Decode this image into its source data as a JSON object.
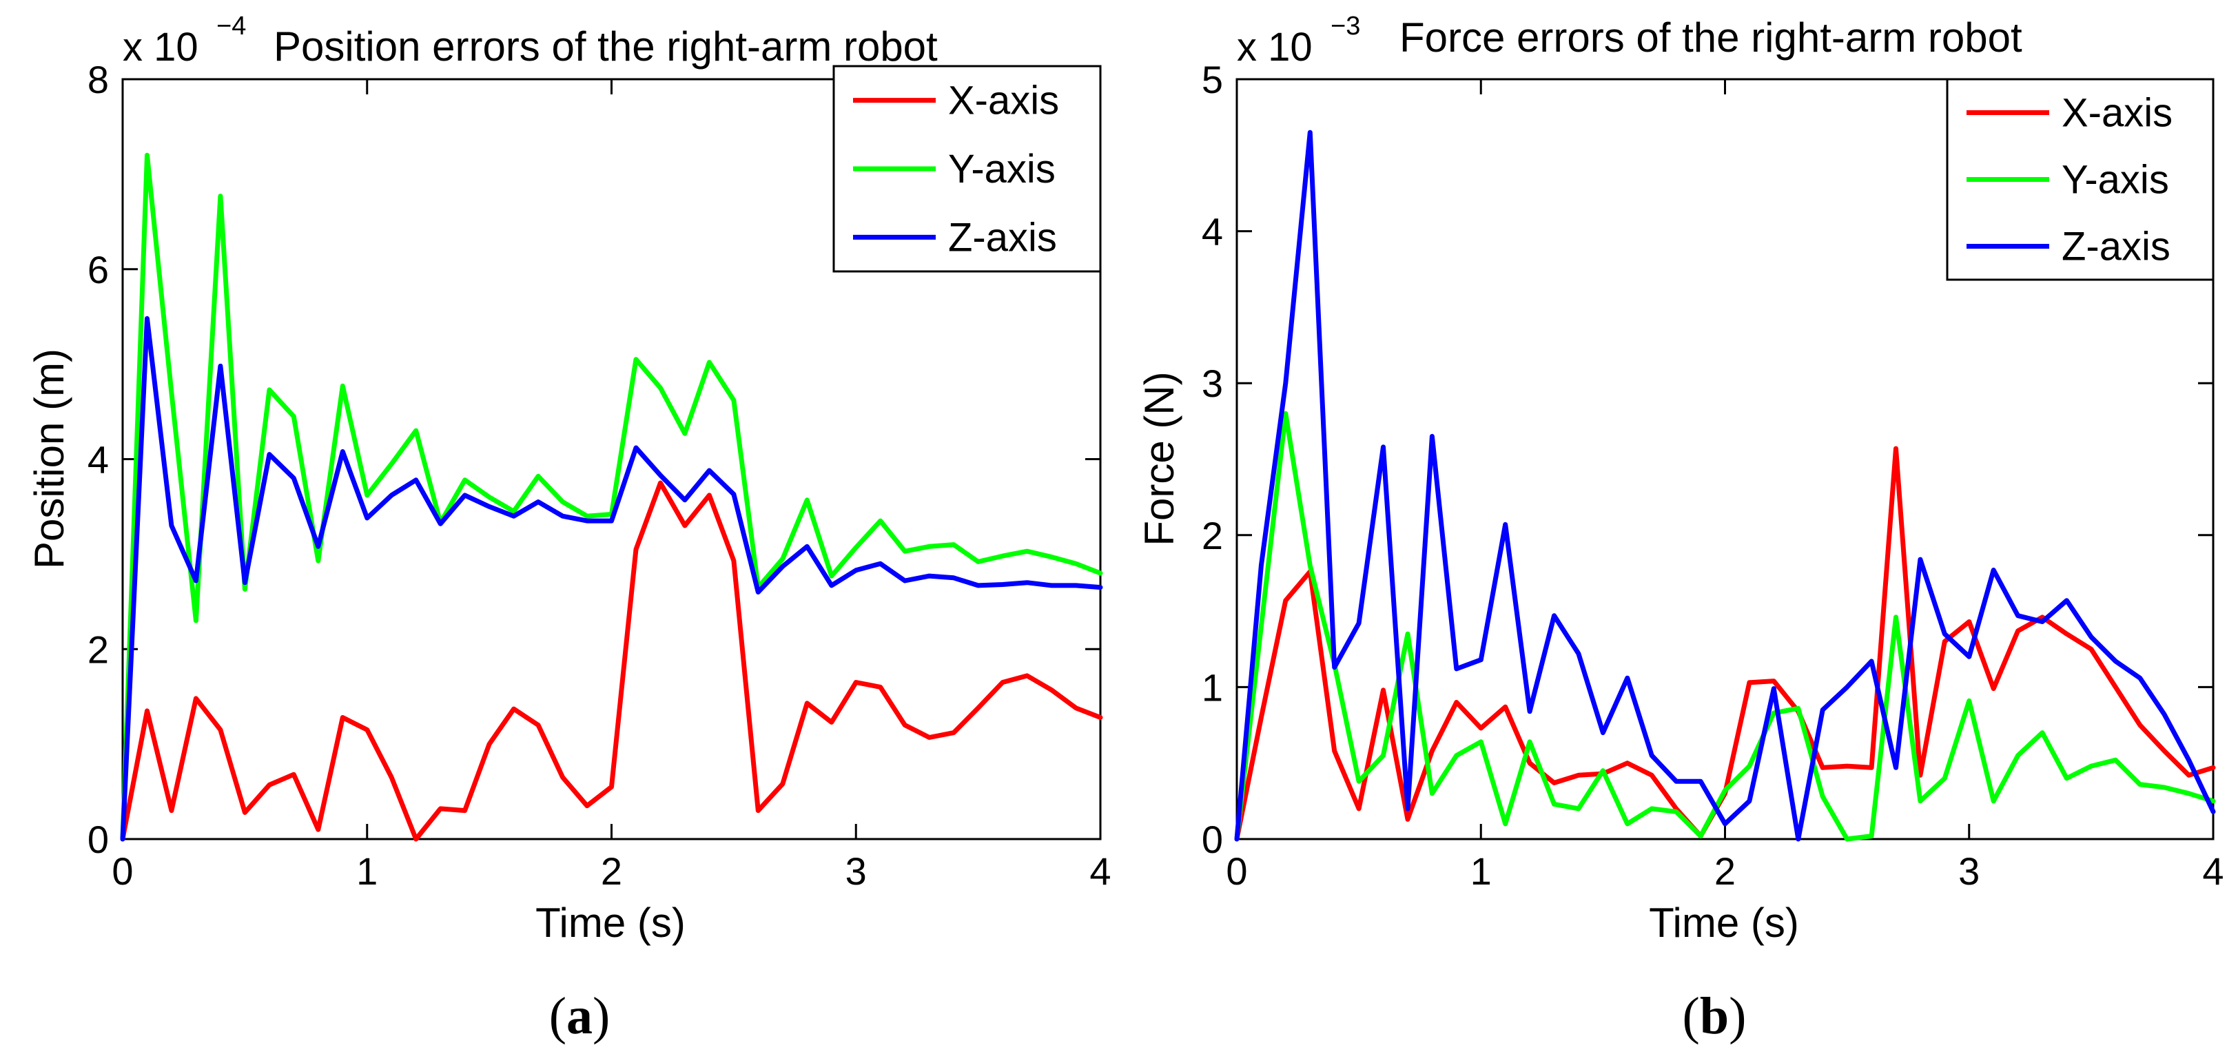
{
  "chart_data": [
    {
      "type": "line",
      "title": "Position errors of the right-arm robot",
      "multiplier": {
        "base": "x 10",
        "exponent": "−4"
      },
      "xlabel": "Time (s)",
      "ylabel": "Position (m)",
      "xlim": [
        0,
        4
      ],
      "ylim": [
        0,
        8
      ],
      "xticks": [
        "0",
        "1",
        "2",
        "3",
        "4"
      ],
      "yticks": [
        "0",
        "2",
        "4",
        "6",
        "8"
      ],
      "caption": {
        "open": "(",
        "letter": "a",
        "close": ")"
      },
      "legend_position": "top-right",
      "grid": false,
      "x": [
        0,
        0.1,
        0.2,
        0.3,
        0.4,
        0.5,
        0.6,
        0.7,
        0.8,
        0.9,
        1.0,
        1.1,
        1.2,
        1.3,
        1.4,
        1.5,
        1.6,
        1.7,
        1.8,
        1.9,
        2.0,
        2.1,
        2.2,
        2.3,
        2.4,
        2.5,
        2.6,
        2.7,
        2.8,
        2.9,
        3.0,
        3.1,
        3.2,
        3.3,
        3.4,
        3.5,
        3.6,
        3.7,
        3.8,
        3.9,
        4.0
      ],
      "series": [
        {
          "name": "X-axis",
          "color": "#ff0000",
          "values": [
            0.0,
            1.35,
            0.3,
            1.48,
            1.15,
            0.28,
            0.57,
            0.68,
            0.1,
            1.28,
            1.15,
            0.65,
            0.0,
            0.32,
            0.3,
            1.0,
            1.37,
            1.2,
            0.65,
            0.35,
            0.55,
            3.05,
            3.75,
            3.3,
            3.62,
            2.93,
            0.3,
            0.58,
            1.43,
            1.23,
            1.65,
            1.6,
            1.2,
            1.07,
            1.12,
            1.38,
            1.65,
            1.72,
            1.57,
            1.38,
            1.28
          ]
        },
        {
          "name": "Y-axis",
          "color": "#00ff00",
          "values": [
            0.0,
            7.2,
            4.7,
            2.3,
            6.77,
            2.63,
            4.73,
            4.45,
            2.93,
            4.77,
            3.62,
            3.95,
            4.3,
            3.33,
            3.78,
            3.6,
            3.45,
            3.82,
            3.55,
            3.4,
            3.42,
            5.05,
            4.75,
            4.27,
            5.02,
            4.62,
            2.65,
            2.95,
            3.57,
            2.77,
            3.07,
            3.35,
            3.03,
            3.08,
            3.1,
            2.92,
            2.98,
            3.03,
            2.97,
            2.9,
            2.8
          ]
        },
        {
          "name": "Z-axis",
          "color": "#0000ff",
          "values": [
            0.0,
            5.48,
            3.3,
            2.72,
            4.98,
            2.7,
            4.05,
            3.8,
            3.08,
            4.08,
            3.38,
            3.62,
            3.78,
            3.32,
            3.62,
            3.5,
            3.4,
            3.55,
            3.4,
            3.35,
            3.35,
            4.12,
            3.83,
            3.57,
            3.88,
            3.63,
            2.6,
            2.87,
            3.08,
            2.67,
            2.83,
            2.9,
            2.72,
            2.77,
            2.75,
            2.67,
            2.68,
            2.7,
            2.67,
            2.67,
            2.65
          ]
        }
      ]
    },
    {
      "type": "line",
      "title": "Force errors of the right-arm robot",
      "multiplier": {
        "base": "x 10",
        "exponent": "−3"
      },
      "xlabel": "Time (s)",
      "ylabel": "Force (N)",
      "xlim": [
        0,
        4
      ],
      "ylim": [
        0,
        5
      ],
      "xticks": [
        "0",
        "1",
        "2",
        "3",
        "4"
      ],
      "yticks": [
        "0",
        "1",
        "2",
        "3",
        "4",
        "5"
      ],
      "caption": {
        "open": "(",
        "letter": "b",
        "close": ")"
      },
      "legend_position": "top-right",
      "grid": false,
      "x": [
        0,
        0.1,
        0.2,
        0.3,
        0.4,
        0.5,
        0.6,
        0.7,
        0.8,
        0.9,
        1.0,
        1.1,
        1.2,
        1.3,
        1.4,
        1.5,
        1.6,
        1.7,
        1.8,
        1.9,
        2.0,
        2.1,
        2.2,
        2.3,
        2.4,
        2.5,
        2.6,
        2.7,
        2.8,
        2.9,
        3.0,
        3.1,
        3.2,
        3.3,
        3.4,
        3.5,
        3.6,
        3.7,
        3.8,
        3.9,
        4.0
      ],
      "series": [
        {
          "name": "X-axis",
          "color": "#ff0000",
          "values": [
            0.0,
            0.8,
            1.57,
            1.76,
            0.58,
            0.2,
            0.98,
            0.13,
            0.58,
            0.9,
            0.73,
            0.87,
            0.5,
            0.37,
            0.42,
            0.43,
            0.5,
            0.42,
            0.2,
            0.02,
            0.3,
            1.03,
            1.04,
            0.84,
            0.47,
            0.48,
            0.47,
            2.57,
            0.42,
            1.3,
            1.43,
            0.99,
            1.37,
            1.46,
            1.35,
            1.25,
            1.0,
            0.75,
            0.58,
            0.42,
            0.47
          ]
        },
        {
          "name": "Y-axis",
          "color": "#00ff00",
          "values": [
            0.0,
            1.4,
            2.8,
            1.8,
            1.15,
            0.38,
            0.55,
            1.35,
            0.3,
            0.55,
            0.64,
            0.1,
            0.64,
            0.23,
            0.2,
            0.45,
            0.1,
            0.2,
            0.18,
            0.02,
            0.32,
            0.48,
            0.83,
            0.86,
            0.28,
            0.0,
            0.02,
            1.46,
            0.25,
            0.4,
            0.91,
            0.25,
            0.55,
            0.7,
            0.4,
            0.48,
            0.52,
            0.36,
            0.34,
            0.3,
            0.25
          ]
        },
        {
          "name": "Z-axis",
          "color": "#0000ff",
          "values": [
            0.0,
            1.8,
            3.0,
            4.65,
            1.13,
            1.42,
            2.58,
            0.2,
            2.65,
            1.12,
            1.18,
            2.07,
            0.84,
            1.47,
            1.22,
            0.7,
            1.06,
            0.55,
            0.38,
            0.38,
            0.1,
            0.25,
            0.99,
            0.0,
            0.85,
            1.0,
            1.17,
            0.47,
            1.84,
            1.35,
            1.2,
            1.77,
            1.47,
            1.43,
            1.57,
            1.33,
            1.17,
            1.06,
            0.82,
            0.52,
            0.18
          ]
        }
      ]
    }
  ]
}
